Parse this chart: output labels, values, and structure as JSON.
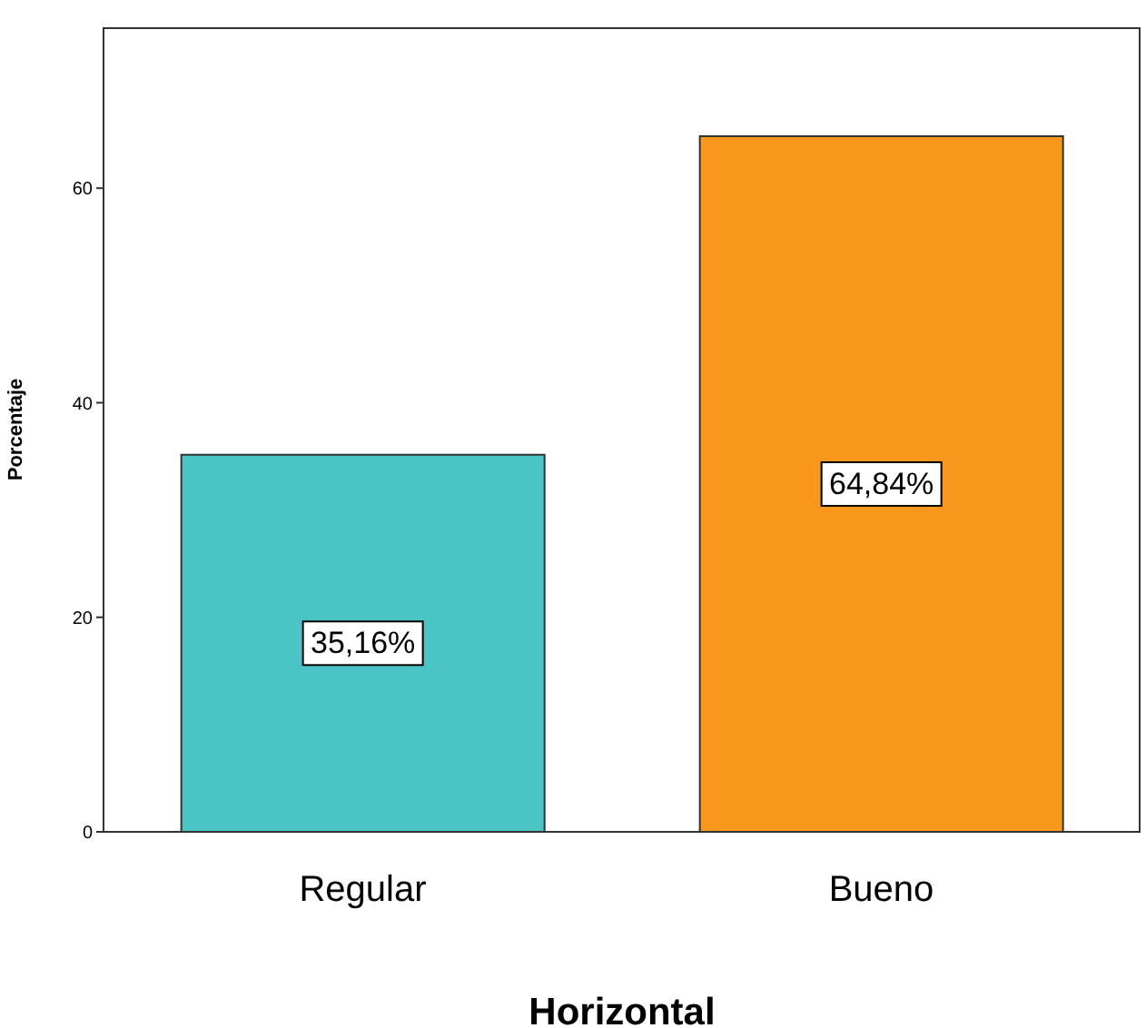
{
  "chart_data": {
    "type": "bar",
    "xlabel": "Horizontal",
    "ylabel": "Porcentaje",
    "categories": [
      "Regular",
      "Bueno"
    ],
    "values": [
      35.16,
      64.84
    ],
    "colors": [
      "#4bc4c6",
      "#f7981d"
    ],
    "value_labels": [
      "35,16%",
      "64,84%"
    ],
    "ylim": [
      0,
      75
    ],
    "yticks": [
      0,
      20,
      40,
      60
    ]
  }
}
